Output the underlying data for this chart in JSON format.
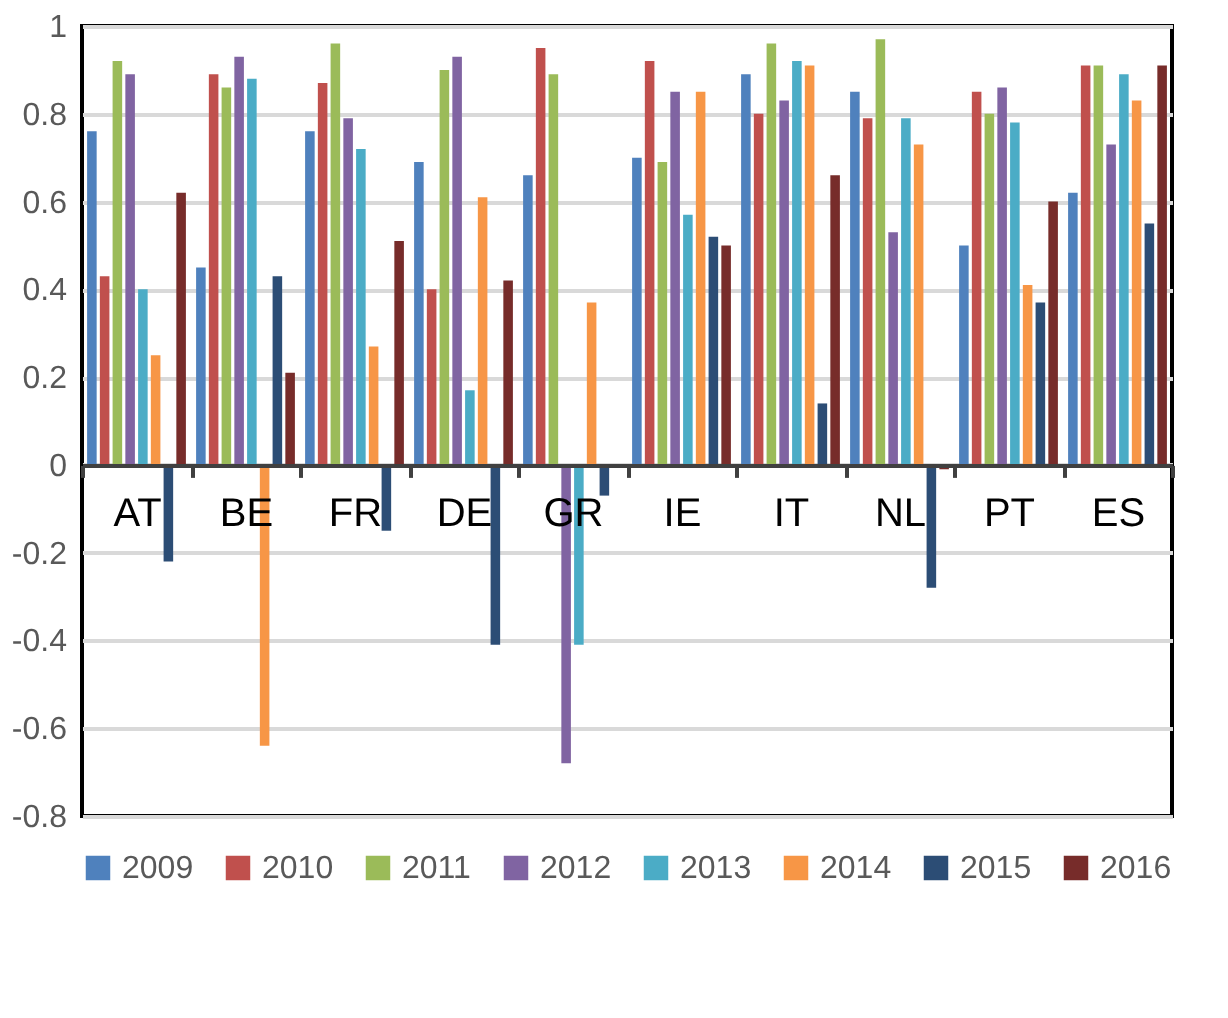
{
  "chart_data": {
    "type": "bar",
    "categories": [
      "AT",
      "BE",
      "FR",
      "DE",
      "GR",
      "IE",
      "IT",
      "NL",
      "PT",
      "ES"
    ],
    "series": [
      {
        "name": "2009",
        "color": "#4f81bd",
        "values": [
          0.76,
          0.45,
          0.76,
          0.69,
          0.66,
          0.7,
          0.89,
          0.85,
          0.5,
          0.62
        ]
      },
      {
        "name": "2010",
        "color": "#c0504d",
        "values": [
          0.43,
          0.89,
          0.87,
          0.4,
          0.95,
          0.92,
          0.8,
          0.79,
          0.85,
          0.91
        ]
      },
      {
        "name": "2011",
        "color": "#9bbb59",
        "values": [
          0.92,
          0.86,
          0.96,
          0.9,
          0.89,
          0.69,
          0.96,
          0.97,
          0.8,
          0.91
        ]
      },
      {
        "name": "2012",
        "color": "#8064a2",
        "values": [
          0.89,
          0.93,
          0.79,
          0.93,
          -0.68,
          0.85,
          0.83,
          0.53,
          0.86,
          0.73
        ]
      },
      {
        "name": "2013",
        "color": "#4bacc6",
        "values": [
          0.4,
          0.88,
          0.72,
          0.17,
          -0.41,
          0.57,
          0.92,
          0.79,
          0.78,
          0.89
        ]
      },
      {
        "name": "2014",
        "color": "#f79646",
        "values": [
          0.25,
          -0.64,
          0.27,
          0.61,
          0.37,
          0.85,
          0.91,
          0.73,
          0.41,
          0.83
        ]
      },
      {
        "name": "2015",
        "color": "#2c4d75",
        "values": [
          -0.22,
          0.43,
          -0.15,
          -0.41,
          -0.07,
          0.52,
          0.14,
          -0.28,
          0.37,
          0.55
        ]
      },
      {
        "name": "2016",
        "color": "#772c2a",
        "values": [
          0.62,
          0.21,
          0.51,
          0.42,
          null,
          0.5,
          0.66,
          -0.01,
          0.6,
          0.91
        ]
      }
    ],
    "ylim": [
      -0.8,
      1
    ],
    "yticks": [
      -0.8,
      -0.6,
      -0.4,
      -0.2,
      0,
      0.2,
      0.4,
      0.6,
      0.8,
      1
    ],
    "grid": "y",
    "legend": "bottom"
  }
}
